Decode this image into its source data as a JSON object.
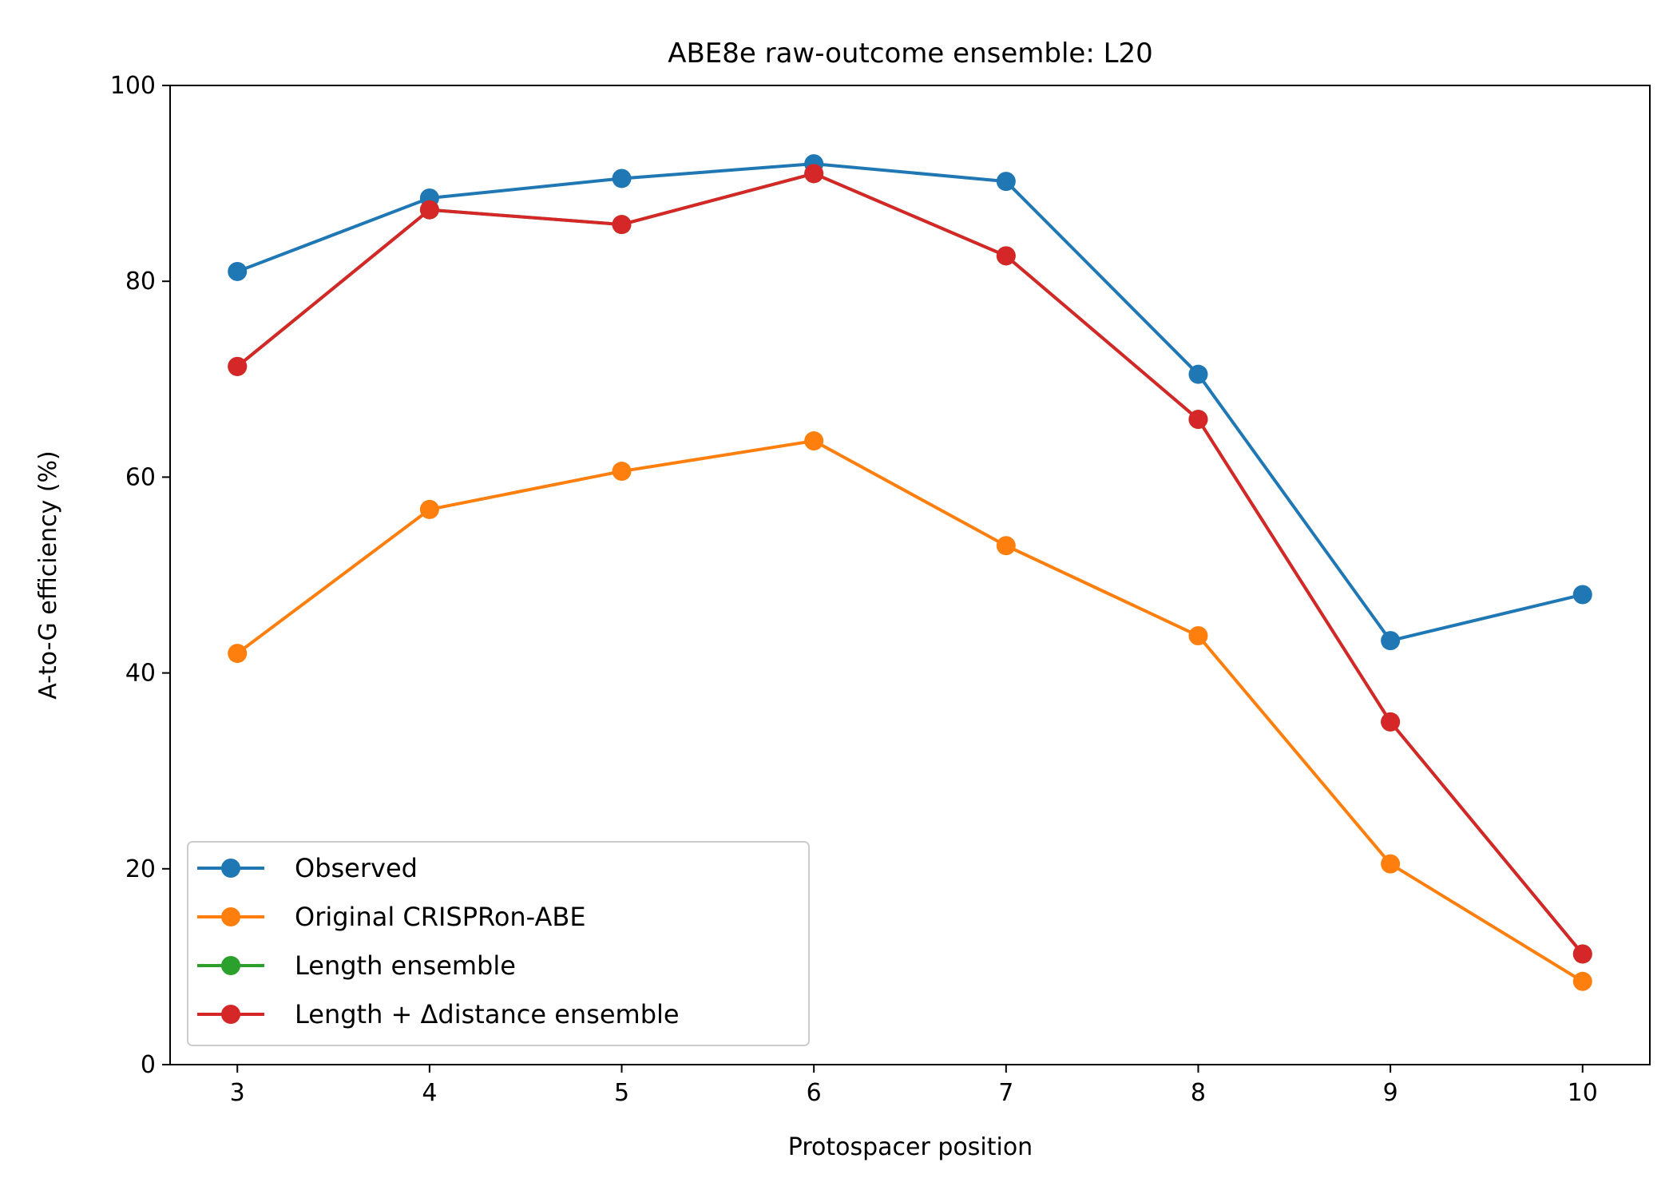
{
  "chart_data": {
    "type": "line",
    "title": "ABE8e raw-outcome ensemble: L20",
    "xlabel": "Protospacer position",
    "ylabel": "A-to-G efficiency (%)",
    "x": [
      3,
      4,
      5,
      6,
      7,
      8,
      9,
      10
    ],
    "xlim": [
      2.65,
      10.35
    ],
    "ylim": [
      0,
      100
    ],
    "xticks": [
      3,
      4,
      5,
      6,
      7,
      8,
      9,
      10
    ],
    "yticks": [
      0,
      20,
      40,
      60,
      80,
      100
    ],
    "grid": false,
    "legend_position": "lower-left",
    "series": [
      {
        "name": "Observed",
        "color": "#1f77b4",
        "values": [
          81.0,
          88.5,
          90.5,
          92.0,
          90.2,
          70.5,
          43.3,
          48.0
        ]
      },
      {
        "name": "Original CRISPRon-ABE",
        "color": "#ff7f0e",
        "values": [
          42.0,
          56.7,
          60.6,
          63.7,
          53.0,
          43.8,
          20.5,
          8.5
        ]
      },
      {
        "name": "Length ensemble",
        "color": "#2ca02c",
        "values": [
          71.3,
          87.3,
          85.8,
          91.0,
          82.6,
          65.9,
          35.0,
          11.3
        ]
      },
      {
        "name": "Length + Δdistance ensemble",
        "color": "#d62728",
        "values": [
          71.3,
          87.3,
          85.8,
          91.0,
          82.6,
          65.9,
          35.0,
          11.3
        ]
      }
    ]
  }
}
